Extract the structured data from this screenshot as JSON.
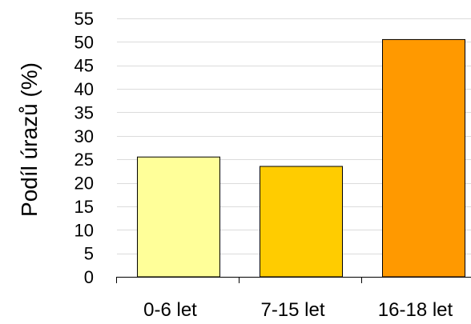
{
  "chart_data": {
    "type": "bar",
    "title": "",
    "xlabel": "",
    "ylabel": "Podíl úrazů (%)",
    "categories": [
      "0-6 let",
      "7-15 let",
      "16-18 let"
    ],
    "values": [
      25.5,
      23.5,
      50.5
    ],
    "colors": [
      "#ffff99",
      "#ffcc00",
      "#ff9900"
    ],
    "ylim": [
      0,
      55
    ],
    "yticks": [
      0,
      5,
      10,
      15,
      20,
      25,
      30,
      35,
      40,
      45,
      50,
      55
    ],
    "grid": true,
    "legend": "none"
  }
}
